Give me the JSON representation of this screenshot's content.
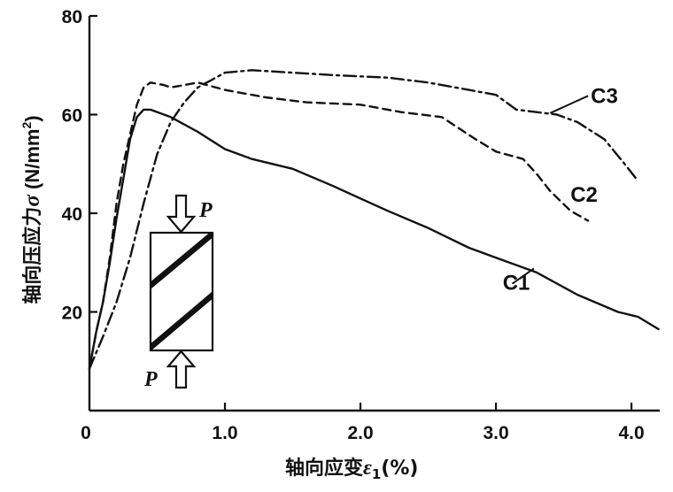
{
  "chart_data": {
    "type": "line",
    "title": "",
    "xlabel_main": "轴向应变",
    "xlabel_symbol": "ε",
    "xlabel_subscript": "1",
    "xlabel_unit": "(%)",
    "ylabel_main": "轴向压应力",
    "ylabel_symbol": "σ",
    "ylabel_unit_open": " (N/mm",
    "ylabel_unit_power": "2",
    "ylabel_unit_close": ")",
    "xlim": [
      0,
      4.3
    ],
    "ylim": [
      0,
      80
    ],
    "x_ticks": [
      {
        "value": 0,
        "label": "0"
      },
      {
        "value": 1.0,
        "label": "1.0"
      },
      {
        "value": 2.0,
        "label": "2.0"
      },
      {
        "value": 3.0,
        "label": "3.0"
      },
      {
        "value": 4.0,
        "label": "4.0"
      }
    ],
    "y_ticks": [
      {
        "value": 20,
        "label": "20"
      },
      {
        "value": 40,
        "label": "40"
      },
      {
        "value": 60,
        "label": "60"
      },
      {
        "value": 80,
        "label": "80"
      }
    ],
    "grid": false,
    "series": [
      {
        "name": "C1",
        "dash": "solid",
        "label_pos": {
          "x": 3.05,
          "y": 24.5
        },
        "label_leader": {
          "x1": 3.12,
          "y1": 25.7,
          "x2": 3.28,
          "y2": 28.8
        },
        "points": [
          {
            "x": 0.0,
            "y": 8.5
          },
          {
            "x": 0.05,
            "y": 16
          },
          {
            "x": 0.1,
            "y": 22
          },
          {
            "x": 0.15,
            "y": 30
          },
          {
            "x": 0.2,
            "y": 39
          },
          {
            "x": 0.25,
            "y": 47
          },
          {
            "x": 0.3,
            "y": 55
          },
          {
            "x": 0.35,
            "y": 59.5
          },
          {
            "x": 0.4,
            "y": 61
          },
          {
            "x": 0.45,
            "y": 61
          },
          {
            "x": 0.6,
            "y": 59.5
          },
          {
            "x": 0.8,
            "y": 56.5
          },
          {
            "x": 1.0,
            "y": 53
          },
          {
            "x": 1.2,
            "y": 51
          },
          {
            "x": 1.5,
            "y": 49
          },
          {
            "x": 1.8,
            "y": 45.5
          },
          {
            "x": 2.0,
            "y": 43
          },
          {
            "x": 2.2,
            "y": 40.5
          },
          {
            "x": 2.5,
            "y": 37
          },
          {
            "x": 2.8,
            "y": 33
          },
          {
            "x": 3.0,
            "y": 31
          },
          {
            "x": 3.3,
            "y": 28
          },
          {
            "x": 3.6,
            "y": 23.5
          },
          {
            "x": 3.9,
            "y": 20
          },
          {
            "x": 4.05,
            "y": 19
          },
          {
            "x": 4.2,
            "y": 16.5
          }
        ]
      },
      {
        "name": "C2",
        "dash": "dashed",
        "label_pos": {
          "x": 3.55,
          "y": 42.3
        },
        "label_leader": null,
        "points": [
          {
            "x": 0.0,
            "y": 8.5
          },
          {
            "x": 0.05,
            "y": 16
          },
          {
            "x": 0.1,
            "y": 22
          },
          {
            "x": 0.15,
            "y": 31
          },
          {
            "x": 0.2,
            "y": 42
          },
          {
            "x": 0.25,
            "y": 50
          },
          {
            "x": 0.3,
            "y": 56
          },
          {
            "x": 0.35,
            "y": 62
          },
          {
            "x": 0.4,
            "y": 65.5
          },
          {
            "x": 0.45,
            "y": 66.5
          },
          {
            "x": 0.55,
            "y": 66
          },
          {
            "x": 0.6,
            "y": 65.5
          },
          {
            "x": 0.7,
            "y": 66
          },
          {
            "x": 0.8,
            "y": 66.5
          },
          {
            "x": 1.0,
            "y": 65
          },
          {
            "x": 1.3,
            "y": 63.5
          },
          {
            "x": 1.6,
            "y": 62.5
          },
          {
            "x": 2.0,
            "y": 62
          },
          {
            "x": 2.3,
            "y": 60.5
          },
          {
            "x": 2.6,
            "y": 59.5
          },
          {
            "x": 2.85,
            "y": 55
          },
          {
            "x": 3.0,
            "y": 52.5
          },
          {
            "x": 3.2,
            "y": 51
          },
          {
            "x": 3.3,
            "y": 48
          },
          {
            "x": 3.4,
            "y": 44.5
          },
          {
            "x": 3.55,
            "y": 40.5
          },
          {
            "x": 3.68,
            "y": 38.5
          }
        ]
      },
      {
        "name": "C3",
        "dash": "dashdot",
        "label_pos": {
          "x": 3.7,
          "y": 62.3
        },
        "label_leader": {
          "x1": 3.68,
          "y1": 63.8,
          "x2": 3.4,
          "y2": 60.3
        },
        "points": [
          {
            "x": 0.0,
            "y": 8.5
          },
          {
            "x": 0.1,
            "y": 15
          },
          {
            "x": 0.2,
            "y": 22
          },
          {
            "x": 0.3,
            "y": 31
          },
          {
            "x": 0.4,
            "y": 42
          },
          {
            "x": 0.5,
            "y": 52
          },
          {
            "x": 0.6,
            "y": 58.5
          },
          {
            "x": 0.7,
            "y": 62.5
          },
          {
            "x": 0.8,
            "y": 65.5
          },
          {
            "x": 0.9,
            "y": 67
          },
          {
            "x": 1.0,
            "y": 68.5
          },
          {
            "x": 1.2,
            "y": 69
          },
          {
            "x": 1.5,
            "y": 68.5
          },
          {
            "x": 1.8,
            "y": 68
          },
          {
            "x": 2.2,
            "y": 67.5
          },
          {
            "x": 2.5,
            "y": 66.5
          },
          {
            "x": 2.8,
            "y": 65
          },
          {
            "x": 3.0,
            "y": 64
          },
          {
            "x": 3.15,
            "y": 61
          },
          {
            "x": 3.3,
            "y": 60.5
          },
          {
            "x": 3.45,
            "y": 60
          },
          {
            "x": 3.6,
            "y": 58.5
          },
          {
            "x": 3.8,
            "y": 55
          },
          {
            "x": 3.95,
            "y": 50
          },
          {
            "x": 4.05,
            "y": 46.5
          }
        ]
      }
    ]
  },
  "specimen_inset": {
    "top_load_label": "P",
    "bottom_load_label": "P"
  },
  "colors": {
    "line": "#111111",
    "axis": "#111111",
    "background": "#ffffff"
  }
}
